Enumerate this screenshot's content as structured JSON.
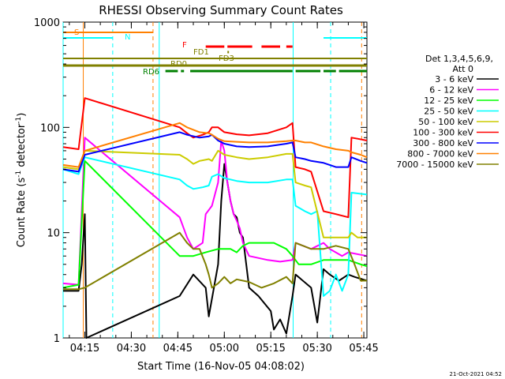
{
  "chart_data": {
    "type": "line",
    "title": "RHESSI Observing Summary Count Rates",
    "xlabel": "Start Time (16-Nov-05 04:08:02)",
    "ylabel_main": "Count Rate (s",
    "ylabel_sup1": "-1",
    "ylabel_mid": " detector",
    "ylabel_sup2": "-1",
    "ylabel_end": ")",
    "x_unit": "minutes since 04:08:02",
    "xlim": [
      0,
      98
    ],
    "ylim": [
      1,
      1000
    ],
    "yscale": "log",
    "x_ticks": [
      {
        "label": "04:15",
        "value": 7
      },
      {
        "label": "04:30",
        "value": 22
      },
      {
        "label": "04:45",
        "value": 37
      },
      {
        "label": "05:00",
        "value": 52
      },
      {
        "label": "05:15",
        "value": 67
      },
      {
        "label": "05:30",
        "value": 82
      },
      {
        "label": "05:45",
        "value": 97
      }
    ],
    "y_ticks": [
      {
        "label": "1",
        "value": 1
      },
      {
        "label": "10",
        "value": 10
      },
      {
        "label": "100",
        "value": 100
      },
      {
        "label": "1000",
        "value": 1000
      }
    ],
    "legend_header": [
      "Det 1,3,4,5,6,9,",
      "Att 0"
    ],
    "series": [
      {
        "name": "3 - 6 keV",
        "color": "#000000",
        "values": [
          [
            0,
            2.8
          ],
          [
            5,
            2.8
          ],
          [
            6,
            5
          ],
          [
            7,
            15
          ],
          [
            7.5,
            1
          ],
          [
            37.6,
            2.5
          ],
          [
            42,
            4
          ],
          [
            46,
            3
          ],
          [
            47,
            1.6
          ],
          [
            50,
            5
          ],
          [
            51,
            20
          ],
          [
            52,
            45
          ],
          [
            53,
            30
          ],
          [
            54,
            20
          ],
          [
            55,
            15
          ],
          [
            56,
            14
          ],
          [
            57,
            10
          ],
          [
            58,
            9
          ],
          [
            60,
            3
          ],
          [
            63,
            2.5
          ],
          [
            67,
            1.8
          ],
          [
            68,
            1.2
          ],
          [
            70,
            1.5
          ],
          [
            72,
            1.1
          ],
          [
            74,
            2.5
          ],
          [
            75,
            4
          ],
          [
            80,
            3
          ],
          [
            82,
            1.4
          ],
          [
            84,
            4.5
          ],
          [
            86,
            4
          ],
          [
            89,
            3.5
          ],
          [
            92,
            4
          ],
          [
            94,
            3.8
          ],
          [
            98,
            3.5
          ]
        ]
      },
      {
        "name": "6 - 12 keV",
        "color": "#ff00ff",
        "values": [
          [
            0,
            3.3
          ],
          [
            5,
            3.2
          ],
          [
            7,
            80
          ],
          [
            37.6,
            14
          ],
          [
            40,
            9
          ],
          [
            42,
            7
          ],
          [
            45,
            8
          ],
          [
            46,
            15
          ],
          [
            48,
            18
          ],
          [
            50,
            30
          ],
          [
            51,
            75
          ],
          [
            52,
            60
          ],
          [
            53,
            30
          ],
          [
            54,
            20
          ],
          [
            55,
            15
          ],
          [
            56,
            13
          ],
          [
            57,
            11
          ],
          [
            58,
            8
          ],
          [
            60,
            6
          ],
          [
            66,
            5.5
          ],
          [
            70,
            5.3
          ],
          [
            74,
            5.5
          ],
          [
            75,
            8
          ],
          [
            80,
            7
          ],
          [
            84,
            8
          ],
          [
            86,
            7
          ],
          [
            90,
            6
          ],
          [
            92,
            6.5
          ],
          [
            98,
            6
          ]
        ]
      },
      {
        "name": "12 - 25 keV",
        "color": "#00ff00",
        "values": [
          [
            0,
            3
          ],
          [
            5,
            3.2
          ],
          [
            7,
            48
          ],
          [
            37.6,
            6
          ],
          [
            42,
            6
          ],
          [
            46,
            6.5
          ],
          [
            50,
            7
          ],
          [
            52,
            7
          ],
          [
            54,
            7
          ],
          [
            56,
            6.5
          ],
          [
            58,
            7.5
          ],
          [
            60,
            8
          ],
          [
            64,
            8
          ],
          [
            68,
            8
          ],
          [
            72,
            7
          ],
          [
            74,
            6
          ],
          [
            76,
            5
          ],
          [
            80,
            5
          ],
          [
            84,
            5.5
          ],
          [
            88,
            5.5
          ],
          [
            92,
            5.5
          ],
          [
            96,
            5
          ],
          [
            98,
            4.8
          ]
        ]
      },
      {
        "name": "25 - 50 keV",
        "color": "#00ffff",
        "values": [
          [
            0,
            40
          ],
          [
            5,
            36
          ],
          [
            7,
            52
          ],
          [
            37.6,
            32
          ],
          [
            40,
            28
          ],
          [
            42,
            26
          ],
          [
            45,
            27
          ],
          [
            47,
            28
          ],
          [
            48,
            34
          ],
          [
            50,
            36
          ],
          [
            52,
            33
          ],
          [
            56,
            31
          ],
          [
            60,
            30
          ],
          [
            66,
            30
          ],
          [
            72,
            32
          ],
          [
            74,
            32
          ],
          [
            75,
            18
          ],
          [
            78,
            16
          ],
          [
            80,
            15
          ],
          [
            82,
            16
          ],
          [
            84,
            2.5
          ],
          [
            86,
            2.8
          ],
          [
            88,
            4
          ],
          [
            90,
            2.8
          ],
          [
            92,
            4
          ],
          [
            93,
            24
          ],
          [
            98,
            23
          ]
        ]
      },
      {
        "name": "50 - 100 keV",
        "color": "#cccc00",
        "values": [
          [
            0,
            42
          ],
          [
            5,
            40
          ],
          [
            7,
            60
          ],
          [
            37.6,
            55
          ],
          [
            40,
            50
          ],
          [
            42,
            45
          ],
          [
            44,
            48
          ],
          [
            47,
            50
          ],
          [
            48,
            48
          ],
          [
            50,
            60
          ],
          [
            52,
            55
          ],
          [
            56,
            52
          ],
          [
            60,
            50
          ],
          [
            66,
            52
          ],
          [
            72,
            56
          ],
          [
            74,
            56
          ],
          [
            75,
            30
          ],
          [
            78,
            28
          ],
          [
            80,
            27
          ],
          [
            84,
            9
          ],
          [
            88,
            9
          ],
          [
            92,
            9
          ],
          [
            93,
            10
          ],
          [
            95,
            9
          ],
          [
            98,
            9
          ]
        ]
      },
      {
        "name": "100 - 300 keV",
        "color": "#ff0000",
        "values": [
          [
            0,
            65
          ],
          [
            5,
            62
          ],
          [
            7,
            190
          ],
          [
            37.6,
            100
          ],
          [
            40,
            88
          ],
          [
            42,
            80
          ],
          [
            45,
            85
          ],
          [
            47,
            90
          ],
          [
            48,
            100
          ],
          [
            50,
            100
          ],
          [
            52,
            90
          ],
          [
            56,
            86
          ],
          [
            60,
            84
          ],
          [
            66,
            88
          ],
          [
            72,
            100
          ],
          [
            74,
            110
          ],
          [
            75,
            42
          ],
          [
            78,
            40
          ],
          [
            80,
            38
          ],
          [
            84,
            16
          ],
          [
            88,
            15
          ],
          [
            92,
            14
          ],
          [
            93,
            80
          ],
          [
            95,
            78
          ],
          [
            98,
            75
          ]
        ]
      },
      {
        "name": "300 - 800 keV",
        "color": "#0000ff",
        "values": [
          [
            0,
            40
          ],
          [
            5,
            38
          ],
          [
            7,
            55
          ],
          [
            37.6,
            90
          ],
          [
            40,
            85
          ],
          [
            44,
            80
          ],
          [
            47,
            82
          ],
          [
            48,
            85
          ],
          [
            50,
            75
          ],
          [
            52,
            70
          ],
          [
            56,
            66
          ],
          [
            60,
            65
          ],
          [
            66,
            66
          ],
          [
            72,
            70
          ],
          [
            74,
            72
          ],
          [
            75,
            52
          ],
          [
            78,
            50
          ],
          [
            80,
            48
          ],
          [
            84,
            46
          ],
          [
            88,
            42
          ],
          [
            92,
            42
          ],
          [
            93,
            52
          ],
          [
            96,
            48
          ],
          [
            98,
            46
          ]
        ]
      },
      {
        "name": "800 - 7000 keV",
        "color": "#ff8000",
        "values": [
          [
            0,
            44
          ],
          [
            5,
            42
          ],
          [
            7,
            60
          ],
          [
            37.6,
            110
          ],
          [
            40,
            100
          ],
          [
            44,
            90
          ],
          [
            47,
            88
          ],
          [
            48,
            85
          ],
          [
            50,
            78
          ],
          [
            52,
            74
          ],
          [
            56,
            73
          ],
          [
            60,
            72
          ],
          [
            66,
            72
          ],
          [
            72,
            74
          ],
          [
            74,
            75
          ],
          [
            75,
            75
          ],
          [
            78,
            72
          ],
          [
            80,
            72
          ],
          [
            84,
            66
          ],
          [
            88,
            62
          ],
          [
            92,
            60
          ],
          [
            93,
            58
          ],
          [
            96,
            55
          ],
          [
            98,
            52
          ]
        ]
      },
      {
        "name": "7000 - 15000 keV",
        "color": "#808000",
        "values": [
          [
            0,
            2.9
          ],
          [
            5,
            2.9
          ],
          [
            7,
            3
          ],
          [
            37.6,
            10
          ],
          [
            40,
            8
          ],
          [
            42,
            7
          ],
          [
            44,
            7
          ],
          [
            46,
            5
          ],
          [
            47,
            4
          ],
          [
            48,
            3
          ],
          [
            50,
            3.3
          ],
          [
            52,
            3.8
          ],
          [
            54,
            3.3
          ],
          [
            56,
            3.6
          ],
          [
            60,
            3.4
          ],
          [
            64,
            3
          ],
          [
            68,
            3.3
          ],
          [
            72,
            3.8
          ],
          [
            74,
            3.3
          ],
          [
            75,
            8
          ],
          [
            80,
            7
          ],
          [
            84,
            7
          ],
          [
            88,
            7.5
          ],
          [
            92,
            7
          ],
          [
            94,
            5
          ],
          [
            96,
            3.5
          ],
          [
            98,
            3.5
          ]
        ]
      }
    ],
    "flag_lines": [
      {
        "label": "S",
        "color": "#ff8000",
        "segments": [
          [
            0,
            29
          ]
        ]
      },
      {
        "label": "N",
        "color": "#00ffff",
        "segments": [
          [
            0,
            16
          ],
          [
            84,
            98
          ]
        ]
      },
      {
        "label": "F",
        "color": "#ff0000",
        "segments": [
          [
            46,
            52
          ],
          [
            53,
            61
          ],
          [
            64,
            70
          ],
          [
            72,
            74
          ]
        ]
      },
      {
        "label": "FD1",
        "color": "#808000",
        "segments": [
          [
            53,
            53.5
          ]
        ]
      },
      {
        "label": "FD3",
        "color": "#808000",
        "segments": [
          [
            0,
            98
          ]
        ]
      },
      {
        "label": "RD0",
        "color": "#808000",
        "segments": [
          [
            0,
            98
          ]
        ]
      },
      {
        "label": "RD6",
        "color": "#008000",
        "segments": [
          [
            33,
            37
          ],
          [
            38,
            39
          ],
          [
            41,
            74
          ],
          [
            75,
            83
          ],
          [
            84,
            88
          ],
          [
            89,
            98
          ]
        ]
      }
    ],
    "vertical_markers": [
      {
        "color": "#00ffff",
        "x": 0,
        "style": "solid"
      },
      {
        "color": "#00ffff",
        "x": 16,
        "style": "dashed"
      },
      {
        "color": "#ff8000",
        "x": 6.5,
        "style": "solid"
      },
      {
        "color": "#ff8000",
        "x": 29,
        "style": "dashed"
      },
      {
        "color": "#00ffff",
        "x": 31,
        "style": "solid"
      },
      {
        "color": "#00ffff",
        "x": 74.2,
        "style": "solid"
      },
      {
        "color": "#00ffff",
        "x": 86.3,
        "style": "dashed"
      },
      {
        "color": "#ff8000",
        "x": 96.3,
        "style": "dashed"
      }
    ]
  },
  "timestamp": "21-Oct-2021 04:52"
}
